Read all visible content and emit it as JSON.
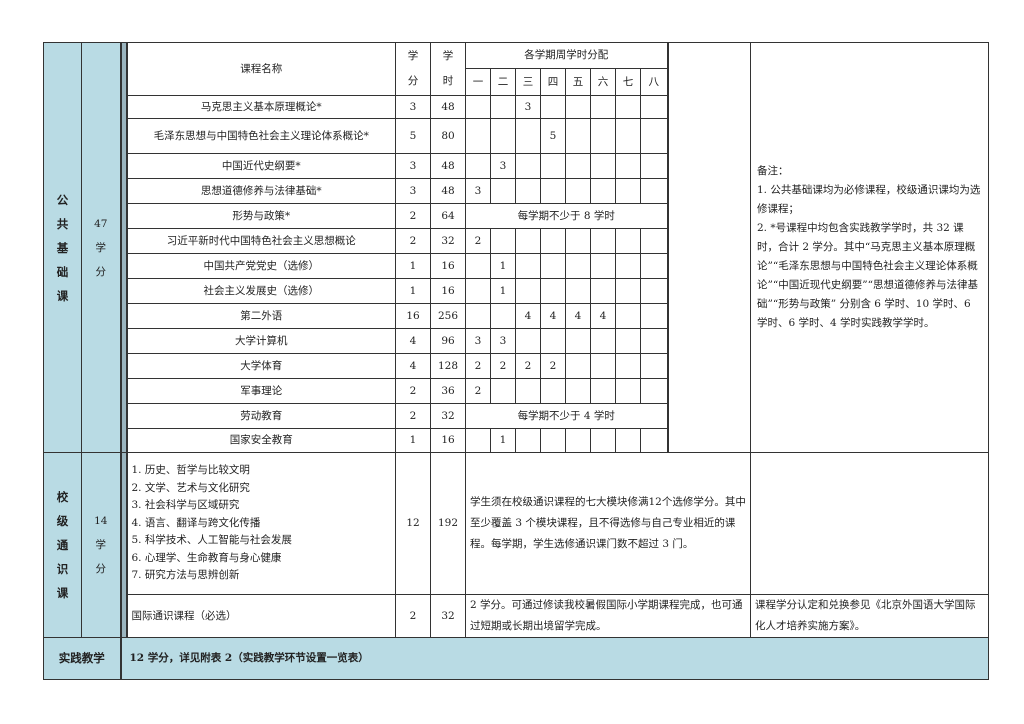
{
  "header": {
    "course_name": "课程名称",
    "credits": [
      "学",
      "分"
    ],
    "hours": [
      "学",
      "时"
    ],
    "semester_dist": "各学期周学时分配",
    "semesters": [
      "一",
      "二",
      "三",
      "四",
      "五",
      "六",
      "七",
      "八"
    ]
  },
  "public": {
    "category": [
      "公",
      "共",
      "基",
      "础",
      "课"
    ],
    "credits": [
      "47",
      "学",
      "分"
    ],
    "courses": [
      {
        "name": "马克思主义基本原理概论*",
        "credits": "3",
        "hours": "48",
        "sem": [
          "",
          "",
          "3",
          "",
          "",
          "",
          "",
          ""
        ]
      },
      {
        "name": "毛泽东思想与中国特色社会主义理论体系概论*",
        "credits": "5",
        "hours": "80",
        "sem": [
          "",
          "",
          "",
          "5",
          "",
          "",
          "",
          ""
        ]
      },
      {
        "name": "中国近代史纲要*",
        "credits": "3",
        "hours": "48",
        "sem": [
          "",
          "3",
          "",
          "",
          "",
          "",
          "",
          ""
        ]
      },
      {
        "name": "思想道德修养与法律基础*",
        "credits": "3",
        "hours": "48",
        "sem": [
          "3",
          "",
          "",
          "",
          "",
          "",
          "",
          ""
        ]
      },
      {
        "name": "形势与政策*",
        "credits": "2",
        "hours": "64",
        "span": "每学期不少于 8 学时"
      },
      {
        "name": "习近平新时代中国特色社会主义思想概论",
        "credits": "2",
        "hours": "32",
        "sem": [
          "2",
          "",
          "",
          "",
          "",
          "",
          "",
          ""
        ]
      },
      {
        "name": "中国共产党党史（选修）",
        "credits": "1",
        "hours": "16",
        "sem": [
          "",
          "1",
          "",
          "",
          "",
          "",
          "",
          ""
        ]
      },
      {
        "name": "社会主义发展史（选修）",
        "credits": "1",
        "hours": "16",
        "sem": [
          "",
          "1",
          "",
          "",
          "",
          "",
          "",
          ""
        ]
      },
      {
        "name": "第二外语",
        "credits": "16",
        "hours": "256",
        "sem": [
          "",
          "",
          "4",
          "4",
          "4",
          "4",
          "",
          ""
        ]
      },
      {
        "name": "大学计算机",
        "credits": "4",
        "hours": "96",
        "sem": [
          "3",
          "3",
          "",
          "",
          "",
          "",
          "",
          ""
        ]
      },
      {
        "name": "大学体育",
        "credits": "4",
        "hours": "128",
        "sem": [
          "2",
          "2",
          "2",
          "2",
          "",
          "",
          "",
          ""
        ]
      },
      {
        "name": "军事理论",
        "credits": "2",
        "hours": "36",
        "sem": [
          "2",
          "",
          "",
          "",
          "",
          "",
          "",
          ""
        ]
      },
      {
        "name": "劳动教育",
        "credits": "2",
        "hours": "32",
        "span": "每学期不少于 4 学时"
      },
      {
        "name": "国家安全教育",
        "credits": "1",
        "hours": "16",
        "sem": [
          "",
          "1",
          "",
          "",
          "",
          "",
          "",
          ""
        ]
      }
    ],
    "remarks": [
      "备注：",
      "1. 公共基础课均为必修课程，校级通识课均为选修课程；",
      "2. *号课程中均包含实践教学学时，共 32 课时，合计 2 学分。其中“马克思主义基本原理概论”“毛泽东思想与中国特色社会主义理论体系概论”“中国近现代史纲要”“思想道德修养与法律基础”“形势与政策” 分别含 6 学时、10 学时、6 学时、6 学时、4 学时实践教学学时。"
    ]
  },
  "general": {
    "category": [
      "校",
      "级",
      "通",
      "识",
      "课"
    ],
    "credits": [
      "14",
      "学",
      "分"
    ],
    "modules": [
      "1. 历史、哲学与比较文明",
      "2. 文学、艺术与文化研究",
      "3. 社会科学与区域研究",
      "4. 语言、翻译与跨文化传播",
      "5. 科学技术、人工智能与社会发展",
      "6. 心理学、生命教育与身心健康",
      "7. 研究方法与思辨创新"
    ],
    "modules_credits": "12",
    "modules_hours": "192",
    "modules_desc": "学生须在校级通识课程的七大模块修满12个选修学分。其中至少覆盖 3 个模块课程，且不得选修与自己专业相近的课程。每学期，学生选修通识课门数不超过 3 门。",
    "intl_name": "国际通识课程（必选）",
    "intl_credits": "2",
    "intl_hours": "32",
    "intl_desc": "2 学分。可通过修读我校暑假国际小学期课程完成，也可通过短期或长期出境留学完成。",
    "intl_remark": "课程学分认定和兑换参见《北京外国语大学国际化人才培养实施方案》。"
  },
  "practice": {
    "label": "实践教学",
    "text": "12 学分，详见附表 2（实践教学环节设置一览表）"
  }
}
